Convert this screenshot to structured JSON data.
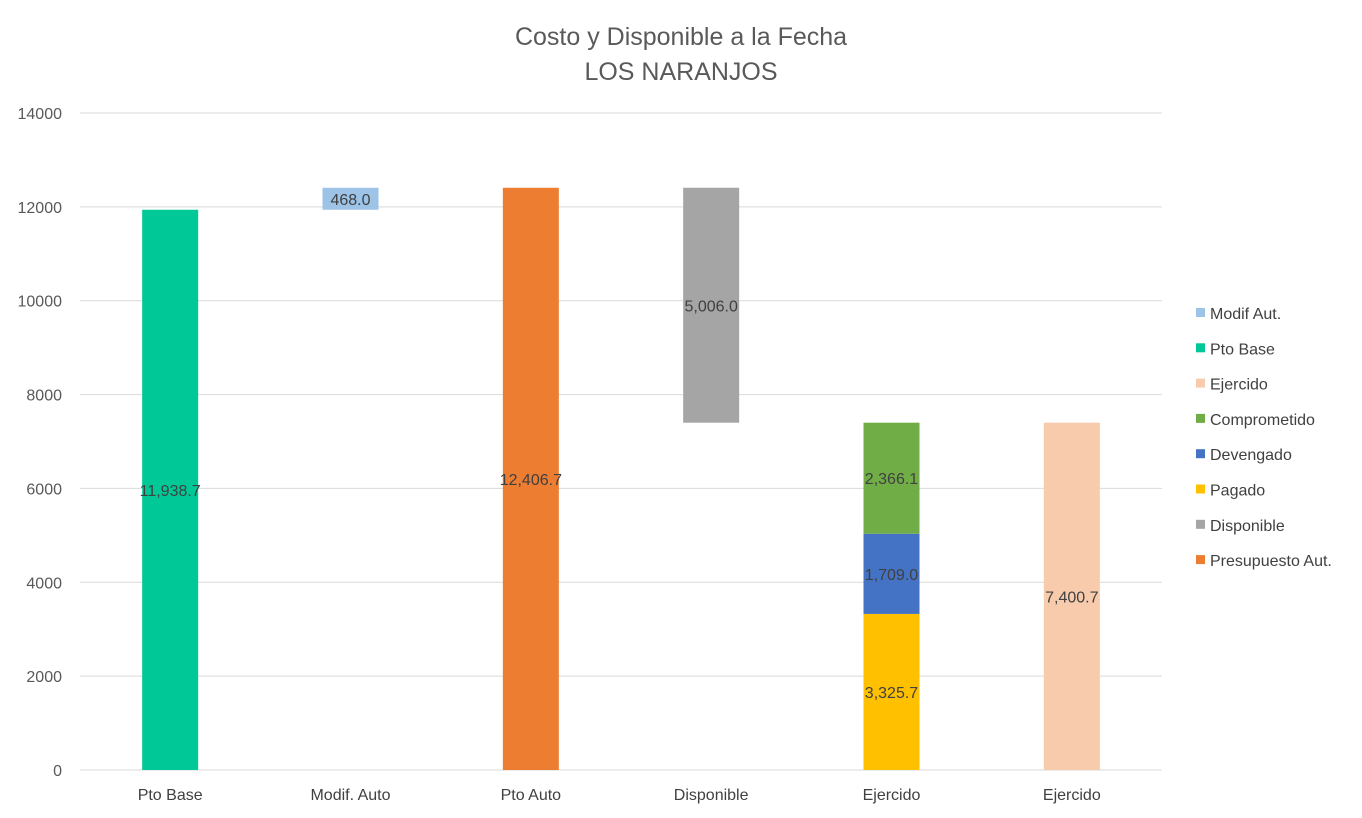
{
  "chart_data": {
    "type": "bar",
    "stacked": true,
    "title": "Costo y Disponible a la Fecha",
    "subtitle": "LOS NARANJOS",
    "xlabel": "",
    "ylabel": "",
    "ylim": [
      0,
      14000
    ],
    "yticks": [
      0,
      2000,
      4000,
      6000,
      8000,
      10000,
      12000,
      14000
    ],
    "grid": true,
    "legend_position": "right",
    "categories": [
      "Pto Base",
      "Modif. Auto",
      "Pto Auto",
      "Disponible",
      "Ejercido",
      "Ejercido"
    ],
    "segments": [
      {
        "category_index": 0,
        "series": "Pto Base",
        "base": 0,
        "value": 11938.7,
        "label": "11,938.7"
      },
      {
        "category_index": 1,
        "series": "Modif Aut.",
        "base": 11938.7,
        "value": 468.0,
        "label": "468.0"
      },
      {
        "category_index": 2,
        "series": "Presupuesto Aut.",
        "base": 0,
        "value": 12406.7,
        "label": "12,406.7"
      },
      {
        "category_index": 3,
        "series": "Disponible",
        "base": 7400.7,
        "value": 5006.0,
        "label": "5,006.0"
      },
      {
        "category_index": 4,
        "series": "Pagado",
        "base": 0,
        "value": 3325.7,
        "label": "3,325.7"
      },
      {
        "category_index": 4,
        "series": "Devengado",
        "base": 3325.7,
        "value": 1709.0,
        "label": "1,709.0"
      },
      {
        "category_index": 4,
        "series": "Comprometido",
        "base": 5034.7,
        "value": 2366.1,
        "label": "2,366.1"
      },
      {
        "category_index": 5,
        "series": "Ejercido",
        "base": 0,
        "value": 7400.7,
        "label": "7,400.7"
      }
    ],
    "series": [
      {
        "name": "Modif Aut.",
        "color": "#9dc3e6"
      },
      {
        "name": "Pto Base",
        "color": "#00c896"
      },
      {
        "name": "Ejercido",
        "color": "#f8cbad"
      },
      {
        "name": "Comprometido",
        "color": "#70ad47"
      },
      {
        "name": "Devengado",
        "color": "#4472c4"
      },
      {
        "name": "Pagado",
        "color": "#ffc000"
      },
      {
        "name": "Disponible",
        "color": "#a5a5a5"
      },
      {
        "name": "Presupuesto Aut.",
        "color": "#ed7d31"
      }
    ]
  }
}
